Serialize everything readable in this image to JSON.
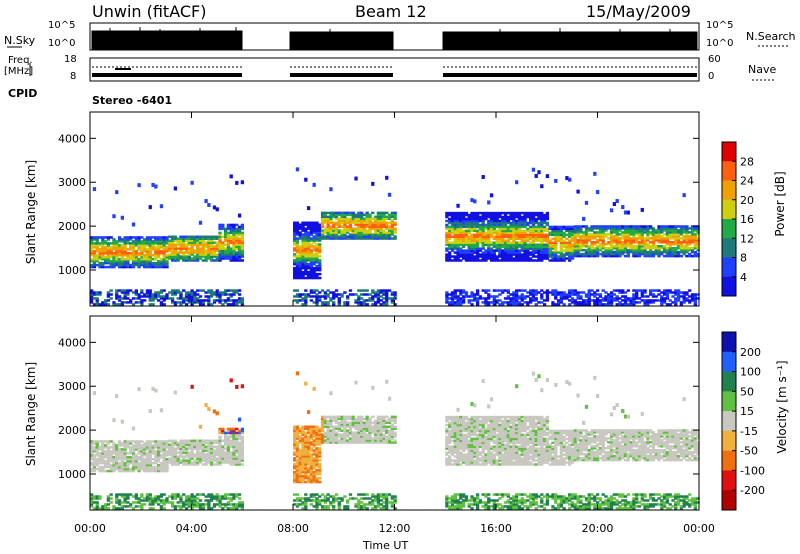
{
  "header": {
    "station": "Unwin (fitACF)",
    "beam": "Beam 12",
    "date": "15/May/2009"
  },
  "top_panels": {
    "nsky_label": "N.Sky",
    "nsky_ticks": [
      "10^5",
      "10^0"
    ],
    "nsearch_label": "N.Search",
    "nsearch_ticks": [
      "10^5",
      "10^0"
    ],
    "freq_label": "Freq.",
    "freq_unit": "[MHz]",
    "freq_ticks": [
      "18",
      "8"
    ],
    "nave_label": "Nave",
    "nave_ticks": [
      "60",
      "0"
    ],
    "cpid_label": "CPID",
    "cpid_value": "Stereo -6401"
  },
  "chart_data": [
    {
      "type": "heatmap",
      "name": "power",
      "ylabel": "Slant Range [km]",
      "yticks": [
        1000,
        2000,
        3000,
        4000
      ],
      "ylim": [
        180,
        4600
      ],
      "xlim": [
        0,
        24
      ],
      "colorbar_label": "Power [dB]",
      "colorbar_ticks": [
        4,
        8,
        12,
        16,
        20,
        24,
        28
      ],
      "colorbar_colors": [
        "#1010e0",
        "#2040ff",
        "#1e7a78",
        "#22aa44",
        "#cfcf10",
        "#f0a000",
        "#ff6010",
        "#e00000"
      ],
      "data_intervals_ut": [
        [
          0,
          6
        ],
        [
          8,
          12
        ],
        [
          14,
          24
        ]
      ]
    },
    {
      "type": "heatmap",
      "name": "velocity",
      "ylabel": "Slant Range [km]",
      "yticks": [
        1000,
        2000,
        3000,
        4000
      ],
      "ylim": [
        180,
        4600
      ],
      "xlim": [
        0,
        24
      ],
      "xlabel": "Time UT",
      "xticks": [
        "00:00",
        "04:00",
        "08:00",
        "12:00",
        "16:00",
        "20:00",
        "00:00"
      ],
      "colorbar_label": "Velocity [m s⁻¹]",
      "colorbar_ticks": [
        200,
        100,
        50,
        15,
        -15,
        -50,
        -100,
        -200
      ],
      "colorbar_colors": [
        "#1010b0",
        "#2060ff",
        "#208050",
        "#60c040",
        "#c8c8c0",
        "#f0b040",
        "#f07010",
        "#e01010",
        "#b00000"
      ],
      "data_intervals_ut": [
        [
          0,
          6
        ],
        [
          8,
          12
        ],
        [
          14,
          24
        ]
      ]
    }
  ]
}
